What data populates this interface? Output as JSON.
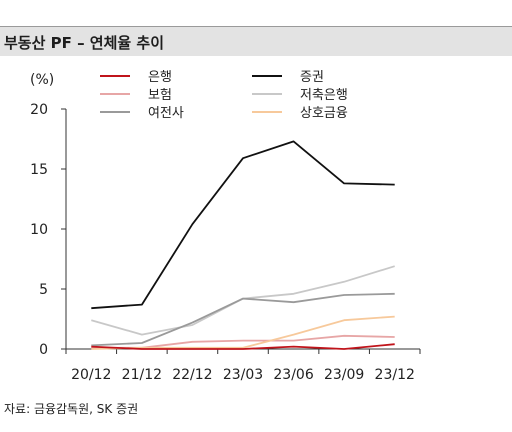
{
  "header": {
    "title": "부동산 PF – 연체율 추이"
  },
  "source": "자료: 금융감독원, SK 증권",
  "chart_data": {
    "type": "line",
    "title": "부동산 PF – 연체율 추이",
    "unit_label": "(%)",
    "categories": [
      "20/12",
      "21/12",
      "22/12",
      "23/03",
      "23/06",
      "23/09",
      "23/12"
    ],
    "ylim": [
      0,
      20
    ],
    "yticks": [
      0,
      5,
      10,
      15,
      20
    ],
    "grid": false,
    "legend_position": "top-left",
    "series": [
      {
        "name": "은행",
        "color": "#c0141b",
        "values": [
          0.2,
          0.0,
          0.0,
          0.0,
          0.2,
          0.0,
          0.4
        ]
      },
      {
        "name": "증권",
        "color": "#111111",
        "values": [
          3.4,
          3.7,
          10.4,
          15.9,
          17.3,
          13.8,
          13.7
        ]
      },
      {
        "name": "보험",
        "color": "#e7a6a6",
        "values": [
          0.1,
          0.1,
          0.6,
          0.7,
          0.7,
          1.1,
          1.0
        ]
      },
      {
        "name": "저축은행",
        "color": "#c8c8c8",
        "values": [
          2.4,
          1.2,
          2.0,
          4.2,
          4.6,
          5.6,
          6.9
        ]
      },
      {
        "name": "여전사",
        "color": "#9a9a9a",
        "values": [
          0.3,
          0.5,
          2.2,
          4.2,
          3.9,
          4.5,
          4.6
        ]
      },
      {
        "name": "상호금융",
        "color": "#f7c99b",
        "values": [
          0.0,
          0.1,
          0.1,
          0.1,
          1.2,
          2.4,
          2.7
        ]
      }
    ]
  }
}
